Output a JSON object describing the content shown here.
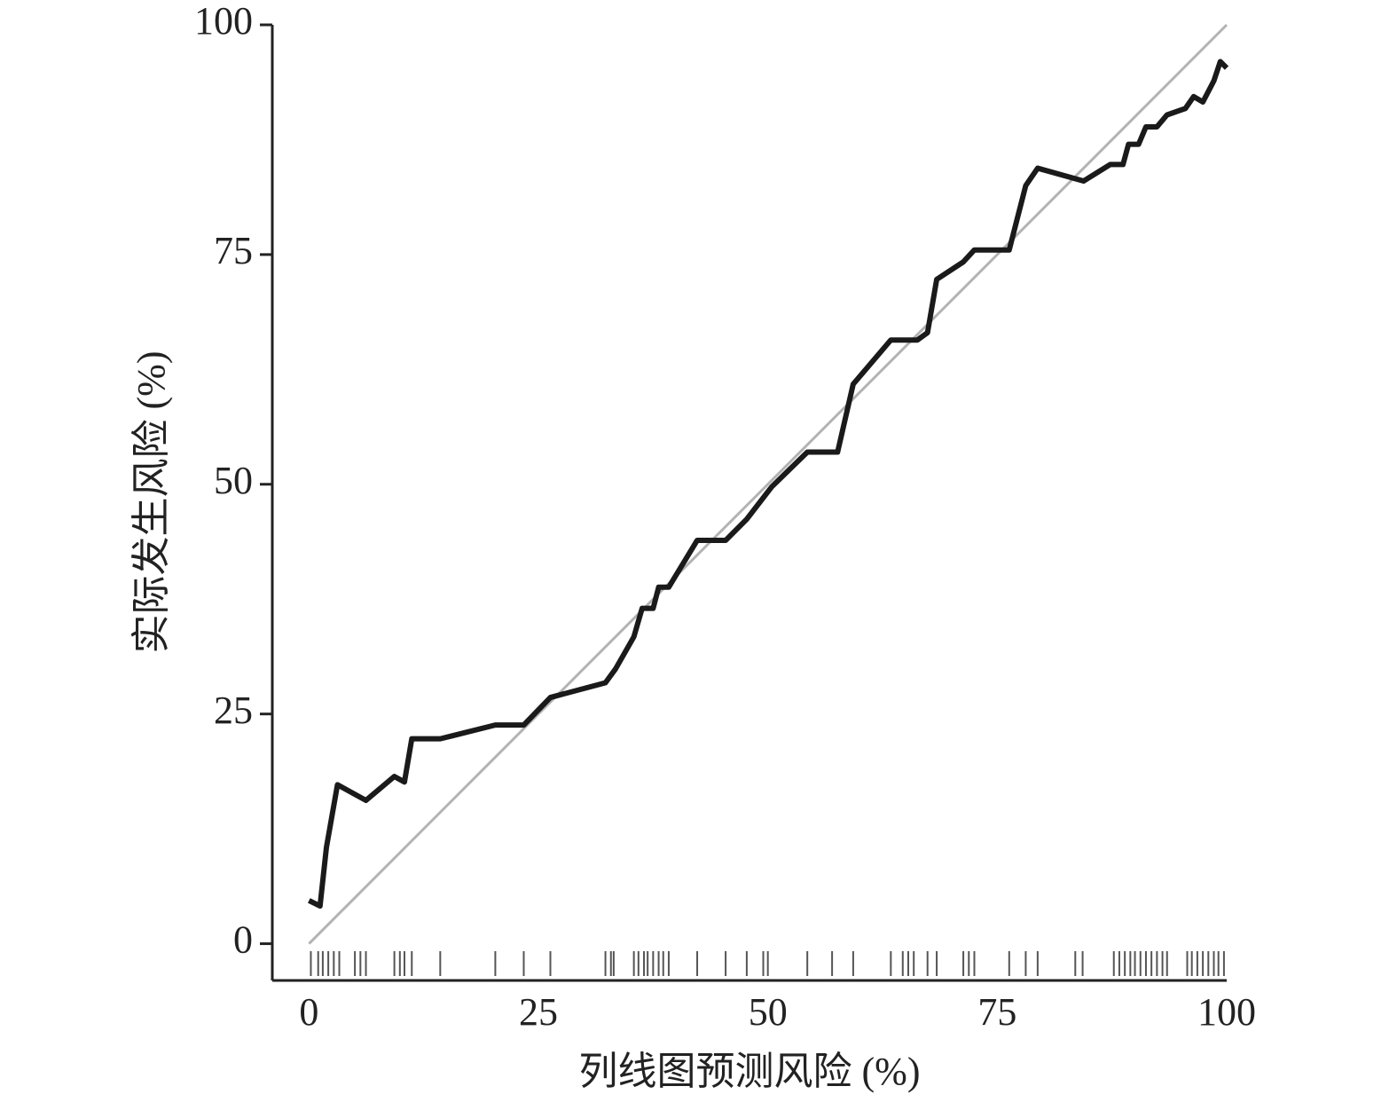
{
  "chart_data": {
    "type": "line",
    "xlabel": "列线图预测风险 (%)",
    "ylabel": "实际发生风险 (%)",
    "xlim": [
      -4,
      100
    ],
    "ylim": [
      -4,
      100
    ],
    "xticks": [
      0,
      25,
      50,
      75,
      100
    ],
    "yticks": [
      0,
      25,
      50,
      75,
      100
    ],
    "grid": false,
    "series": [
      {
        "color": "#b3b3b3",
        "x": [
          0,
          100
        ],
        "values": [
          0,
          100
        ]
      },
      {
        "color": "#1a1a1a",
        "x": [
          0,
          1.2,
          1.9,
          3.1,
          6.2,
          9.3,
          10.4,
          11.2,
          14.3,
          20.3,
          23.4,
          26.3,
          32.3,
          33.4,
          35.4,
          36.3,
          37.5,
          38.1,
          39.2,
          42.3,
          45.4,
          47.7,
          50.4,
          54.3,
          57.6,
          59.3,
          63.4,
          66.3,
          67.4,
          68.4,
          71.3,
          72.5,
          76.3,
          78.1,
          79.4,
          84.4,
          87.3,
          88.7,
          89.3,
          90.4,
          91.2,
          92.4,
          93.5,
          95.5,
          96.4,
          97.4,
          98.6,
          99.3,
          100
        ],
        "values": [
          4.7,
          4.1,
          10.5,
          17.3,
          15.6,
          18.2,
          17.6,
          22.3,
          22.3,
          23.8,
          23.8,
          26.8,
          28.4,
          29.9,
          33.4,
          36.5,
          36.5,
          38.8,
          38.8,
          43.9,
          43.9,
          46.2,
          49.7,
          53.5,
          53.5,
          60.9,
          65.7,
          65.7,
          66.5,
          72.3,
          74.2,
          75.5,
          75.5,
          82.5,
          84.4,
          83,
          84.8,
          84.8,
          87,
          87,
          88.9,
          88.9,
          90.2,
          90.9,
          92.2,
          91.6,
          93.9,
          96,
          95.3
        ]
      }
    ],
    "rug": {
      "color": "#555555",
      "x": [
        0.2,
        1,
        1.5,
        2.1,
        2.7,
        3.3,
        5,
        5.6,
        6.2,
        9.3,
        9.9,
        10.4,
        11.2,
        14.3,
        20.3,
        23.4,
        26.3,
        32.3,
        32.9,
        33.2,
        35.4,
        35.9,
        36.5,
        36.9,
        37.5,
        38.1,
        38.6,
        39.2,
        42.3,
        45.4,
        47.7,
        49.5,
        50,
        54.3,
        57,
        59.3,
        63.4,
        64.7,
        65.3,
        65.9,
        67.4,
        68.4,
        71.3,
        71.9,
        72.5,
        76.3,
        78.1,
        79.4,
        83.5,
        84.3,
        87.7,
        88.3,
        88.9,
        89.5,
        90,
        90.6,
        91.2,
        91.8,
        92.4,
        93,
        93.5,
        95.7,
        96.2,
        96.8,
        97.4,
        98,
        98.6,
        99.1,
        99.7
      ]
    }
  }
}
